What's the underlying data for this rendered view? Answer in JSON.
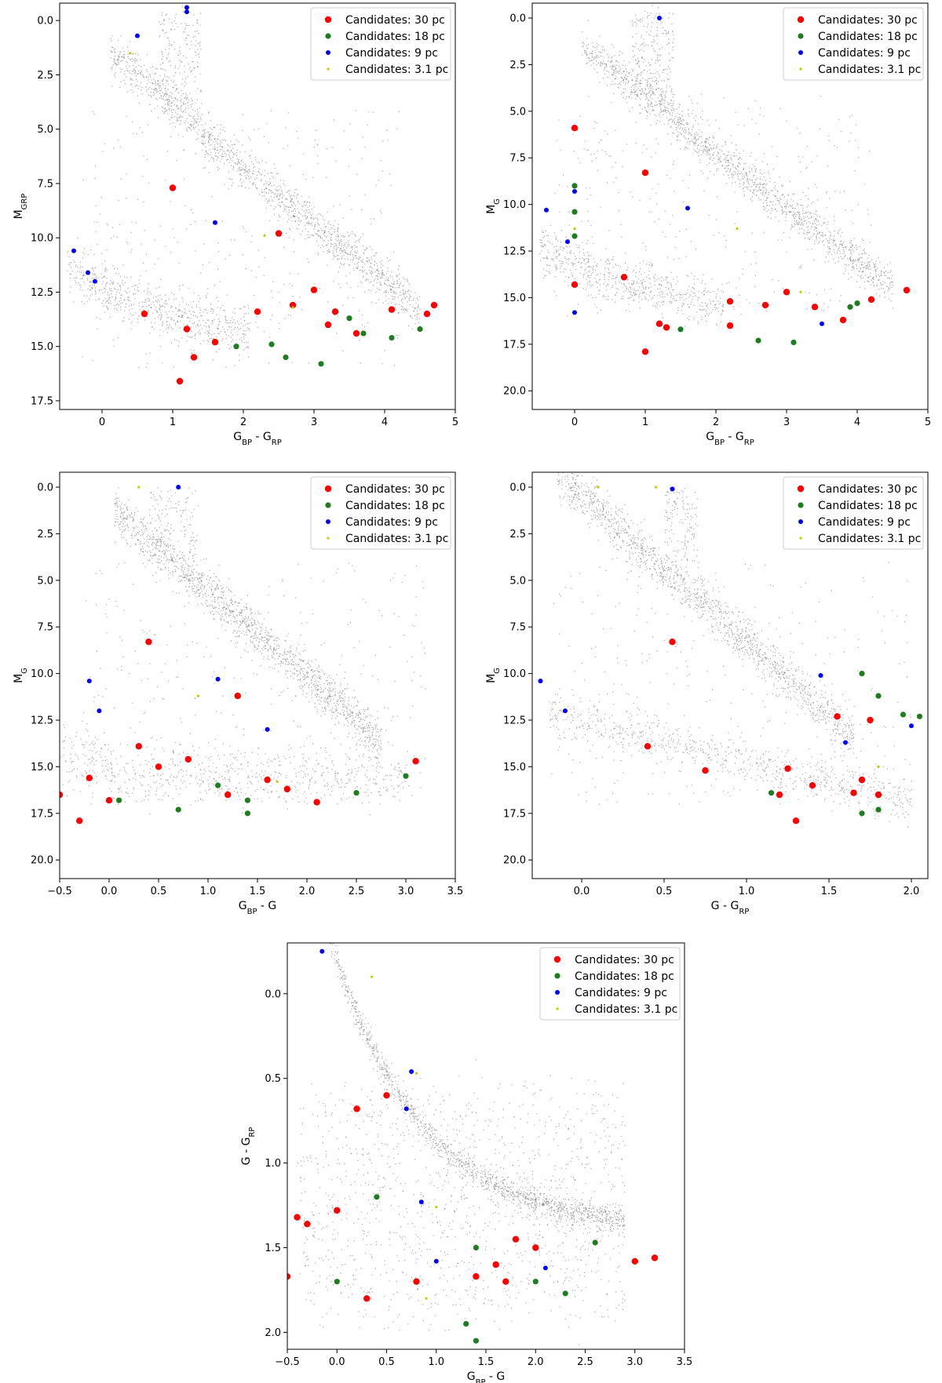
{
  "legend": {
    "placement": "top-right",
    "entries": [
      {
        "label": "Candidates: 30 pc",
        "color": "#ff0000"
      },
      {
        "label": "Candidates: 18 pc",
        "color": "#1e7d1e"
      },
      {
        "label": "Candidates: 9 pc",
        "color": "#0000ff"
      },
      {
        "label": "Candidates: 3.1 pc",
        "color": "#c8c800"
      }
    ]
  },
  "background_color": "#808080",
  "chart_data": [
    {
      "type": "scatter",
      "xlabel": "G_BP - G_RP",
      "ylabel": "M_G_RP",
      "xlim": [
        -0.6,
        5.0
      ],
      "ylim": [
        17.9,
        -0.8
      ],
      "xticks": [
        "0",
        "1",
        "2",
        "3",
        "4",
        "5"
      ],
      "xtick_values": [
        0,
        1,
        2,
        3,
        4,
        5
      ],
      "yticks": [
        "0.0",
        "2.5",
        "5.0",
        "7.5",
        "10.0",
        "12.5",
        "15.0",
        "17.5"
      ],
      "ytick_values": [
        0,
        2.5,
        5,
        7.5,
        10,
        12.5,
        15,
        17.5
      ],
      "series": [
        {
          "name": "Candidates: 30 pc",
          "points": [
            [
              1.0,
              7.7
            ],
            [
              1.1,
              16.6
            ],
            [
              1.2,
              14.2
            ],
            [
              1.3,
              15.5
            ],
            [
              1.6,
              14.8
            ],
            [
              2.2,
              13.4
            ],
            [
              2.7,
              13.1
            ],
            [
              3.0,
              12.4
            ],
            [
              3.3,
              13.4
            ],
            [
              3.6,
              14.4
            ],
            [
              4.1,
              13.3
            ],
            [
              4.6,
              13.5
            ],
            [
              4.7,
              13.1
            ],
            [
              0.6,
              13.5
            ],
            [
              3.2,
              14.0
            ],
            [
              2.5,
              9.8
            ]
          ]
        },
        {
          "name": "Candidates: 18 pc",
          "points": [
            [
              1.9,
              15.0
            ],
            [
              2.4,
              14.9
            ],
            [
              2.6,
              15.5
            ],
            [
              3.1,
              15.8
            ],
            [
              3.7,
              14.4
            ],
            [
              4.1,
              14.6
            ],
            [
              3.5,
              13.7
            ],
            [
              4.5,
              14.2
            ]
          ]
        },
        {
          "name": "Candidates: 9 pc",
          "points": [
            [
              1.6,
              9.3
            ],
            [
              -0.4,
              10.6
            ],
            [
              -0.2,
              11.6
            ],
            [
              -0.1,
              12.0
            ],
            [
              1.2,
              -0.6
            ],
            [
              1.2,
              -0.4
            ],
            [
              0.5,
              0.7
            ]
          ]
        },
        {
          "name": "Candidates: 3.1 pc",
          "points": [
            [
              0.4,
              1.5
            ],
            [
              2.3,
              9.9
            ],
            [
              2.7,
              13.2
            ]
          ]
        }
      ]
    },
    {
      "type": "scatter",
      "xlabel": "G_BP - G_RP",
      "ylabel": "M_G",
      "xlim": [
        -0.6,
        5.0
      ],
      "ylim": [
        21.0,
        -0.8
      ],
      "xticks": [
        "0",
        "1",
        "2",
        "3",
        "4",
        "5"
      ],
      "xtick_values": [
        0,
        1,
        2,
        3,
        4,
        5
      ],
      "yticks": [
        "0.0",
        "2.5",
        "5.0",
        "7.5",
        "10.0",
        "12.5",
        "15.0",
        "17.5",
        "20.0"
      ],
      "ytick_values": [
        0,
        2.5,
        5,
        7.5,
        10,
        12.5,
        15,
        17.5,
        20
      ],
      "series": [
        {
          "name": "Candidates: 30 pc",
          "points": [
            [
              0.0,
              5.9
            ],
            [
              0.0,
              14.3
            ],
            [
              1.0,
              8.3
            ],
            [
              1.0,
              17.9
            ],
            [
              1.2,
              16.4
            ],
            [
              1.3,
              16.6
            ],
            [
              2.2,
              15.2
            ],
            [
              2.7,
              15.4
            ],
            [
              3.0,
              14.7
            ],
            [
              3.4,
              15.5
            ],
            [
              3.8,
              16.2
            ],
            [
              4.2,
              15.1
            ],
            [
              4.7,
              14.6
            ],
            [
              0.7,
              13.9
            ],
            [
              2.2,
              16.5
            ]
          ]
        },
        {
          "name": "Candidates: 18 pc",
          "points": [
            [
              0.0,
              9.0
            ],
            [
              0.0,
              10.4
            ],
            [
              0.0,
              11.7
            ],
            [
              1.5,
              16.7
            ],
            [
              2.6,
              17.3
            ],
            [
              3.1,
              17.4
            ],
            [
              3.9,
              15.5
            ],
            [
              4.0,
              15.3
            ]
          ]
        },
        {
          "name": "Candidates: 9 pc",
          "points": [
            [
              0.0,
              9.3
            ],
            [
              0.0,
              15.8
            ],
            [
              -0.4,
              10.3
            ],
            [
              -0.1,
              12.0
            ],
            [
              1.6,
              10.2
            ],
            [
              1.2,
              0.0
            ],
            [
              3.5,
              16.4
            ]
          ]
        },
        {
          "name": "Candidates: 3.1 pc",
          "points": [
            [
              0.0,
              11.3
            ],
            [
              2.3,
              11.3
            ],
            [
              3.2,
              14.7
            ]
          ]
        }
      ]
    },
    {
      "type": "scatter",
      "xlabel": "G_BP - G",
      "ylabel": "M_G",
      "xlim": [
        -0.5,
        3.5
      ],
      "ylim": [
        21.0,
        -0.8
      ],
      "xticks": [
        "−0.5",
        "0.0",
        "0.5",
        "1.0",
        "1.5",
        "2.0",
        "2.5",
        "3.0",
        "3.5"
      ],
      "xtick_values": [
        -0.5,
        0,
        0.5,
        1,
        1.5,
        2,
        2.5,
        3,
        3.5
      ],
      "yticks": [
        "0.0",
        "2.5",
        "5.0",
        "7.5",
        "10.0",
        "12.5",
        "15.0",
        "17.5",
        "20.0"
      ],
      "ytick_values": [
        0,
        2.5,
        5,
        7.5,
        10,
        12.5,
        15,
        17.5,
        20
      ],
      "series": [
        {
          "name": "Candidates: 30 pc",
          "points": [
            [
              -0.5,
              16.5
            ],
            [
              -0.3,
              17.9
            ],
            [
              -0.2,
              15.6
            ],
            [
              0.0,
              16.8
            ],
            [
              0.3,
              13.9
            ],
            [
              0.5,
              15.0
            ],
            [
              0.8,
              14.6
            ],
            [
              1.2,
              16.5
            ],
            [
              1.6,
              15.7
            ],
            [
              1.8,
              16.2
            ],
            [
              3.1,
              14.7
            ],
            [
              0.4,
              8.3
            ],
            [
              2.1,
              16.9
            ],
            [
              1.3,
              11.2
            ]
          ]
        },
        {
          "name": "Candidates: 18 pc",
          "points": [
            [
              0.1,
              16.8
            ],
            [
              0.7,
              17.3
            ],
            [
              1.1,
              16.0
            ],
            [
              1.4,
              16.8
            ],
            [
              2.5,
              16.4
            ],
            [
              3.0,
              15.5
            ],
            [
              1.4,
              17.5
            ]
          ]
        },
        {
          "name": "Candidates: 9 pc",
          "points": [
            [
              -0.2,
              10.4
            ],
            [
              -0.1,
              12.0
            ],
            [
              1.1,
              10.3
            ],
            [
              0.7,
              0.0
            ],
            [
              1.6,
              13.0
            ]
          ]
        },
        {
          "name": "Candidates: 3.1 pc",
          "points": [
            [
              0.3,
              0.0
            ],
            [
              0.9,
              11.2
            ],
            [
              1.7,
              15.8
            ]
          ]
        }
      ]
    },
    {
      "type": "scatter",
      "xlabel": "G - G_RP",
      "ylabel": "M_G",
      "xlim": [
        -0.3,
        2.1
      ],
      "ylim": [
        21.0,
        -0.8
      ],
      "xticks": [
        "0.0",
        "0.5",
        "1.0",
        "1.5",
        "2.0"
      ],
      "xtick_values": [
        0,
        0.5,
        1,
        1.5,
        2
      ],
      "yticks": [
        "0.0",
        "2.5",
        "5.0",
        "7.5",
        "10.0",
        "12.5",
        "15.0",
        "17.5",
        "20.0"
      ],
      "ytick_values": [
        0,
        2.5,
        5,
        7.5,
        10,
        12.5,
        15,
        17.5,
        20
      ],
      "series": [
        {
          "name": "Candidates: 30 pc",
          "points": [
            [
              0.4,
              13.9
            ],
            [
              0.55,
              8.3
            ],
            [
              0.75,
              15.2
            ],
            [
              1.2,
              16.5
            ],
            [
              1.25,
              15.1
            ],
            [
              1.3,
              17.9
            ],
            [
              1.4,
              16.0
            ],
            [
              1.55,
              12.3
            ],
            [
              1.65,
              16.4
            ],
            [
              1.7,
              15.7
            ],
            [
              1.8,
              16.5
            ],
            [
              1.75,
              12.5
            ]
          ]
        },
        {
          "name": "Candidates: 18 pc",
          "points": [
            [
              1.15,
              16.4
            ],
            [
              1.7,
              17.5
            ],
            [
              1.8,
              17.3
            ],
            [
              1.95,
              12.2
            ],
            [
              2.05,
              12.3
            ],
            [
              1.7,
              10.0
            ],
            [
              1.8,
              11.2
            ]
          ]
        },
        {
          "name": "Candidates: 9 pc",
          "points": [
            [
              -0.25,
              10.4
            ],
            [
              -0.1,
              12.0
            ],
            [
              0.55,
              0.1
            ],
            [
              2.0,
              12.8
            ],
            [
              1.6,
              13.7
            ],
            [
              1.45,
              10.1
            ]
          ]
        },
        {
          "name": "Candidates: 3.1 pc",
          "points": [
            [
              0.1,
              0.0
            ],
            [
              0.45,
              0.0
            ],
            [
              1.8,
              15.0
            ]
          ]
        }
      ]
    },
    {
      "type": "scatter",
      "xlabel": "G_BP - G",
      "ylabel": "G - G_RP",
      "xlim": [
        -0.5,
        3.5
      ],
      "ylim": [
        2.1,
        -0.3
      ],
      "xticks": [
        "−0.5",
        "0.0",
        "0.5",
        "1.0",
        "1.5",
        "2.0",
        "2.5",
        "3.0",
        "3.5"
      ],
      "xtick_values": [
        -0.5,
        0,
        0.5,
        1,
        1.5,
        2,
        2.5,
        3,
        3.5
      ],
      "yticks": [
        "0.0",
        "0.5",
        "1.0",
        "1.5",
        "2.0"
      ],
      "ytick_values": [
        0,
        0.5,
        1,
        1.5,
        2
      ],
      "series": [
        {
          "name": "Candidates: 30 pc",
          "points": [
            [
              -0.5,
              1.67
            ],
            [
              -0.4,
              1.32
            ],
            [
              -0.3,
              1.36
            ],
            [
              0.0,
              1.28
            ],
            [
              0.3,
              1.8
            ],
            [
              0.5,
              0.6
            ],
            [
              0.8,
              1.7
            ],
            [
              1.4,
              1.67
            ],
            [
              1.6,
              1.6
            ],
            [
              1.8,
              1.45
            ],
            [
              2.0,
              1.5
            ],
            [
              3.0,
              1.58
            ],
            [
              3.2,
              1.56
            ],
            [
              1.7,
              1.7
            ],
            [
              0.2,
              0.68
            ]
          ]
        },
        {
          "name": "Candidates: 18 pc",
          "points": [
            [
              0.0,
              1.7
            ],
            [
              0.4,
              1.2
            ],
            [
              1.3,
              1.95
            ],
            [
              1.4,
              2.05
            ],
            [
              2.0,
              1.7
            ],
            [
              2.3,
              1.77
            ],
            [
              1.4,
              1.5
            ],
            [
              2.6,
              1.47
            ]
          ]
        },
        {
          "name": "Candidates: 9 pc",
          "points": [
            [
              -0.15,
              -0.25
            ],
            [
              0.75,
              0.46
            ],
            [
              1.0,
              1.58
            ],
            [
              0.7,
              0.68
            ],
            [
              2.1,
              1.62
            ],
            [
              0.85,
              1.23
            ]
          ]
        },
        {
          "name": "Candidates: 3.1 pc",
          "points": [
            [
              0.35,
              -0.1
            ],
            [
              0.8,
              0.47
            ],
            [
              0.9,
              1.8
            ],
            [
              1.0,
              1.26
            ]
          ]
        }
      ]
    }
  ]
}
